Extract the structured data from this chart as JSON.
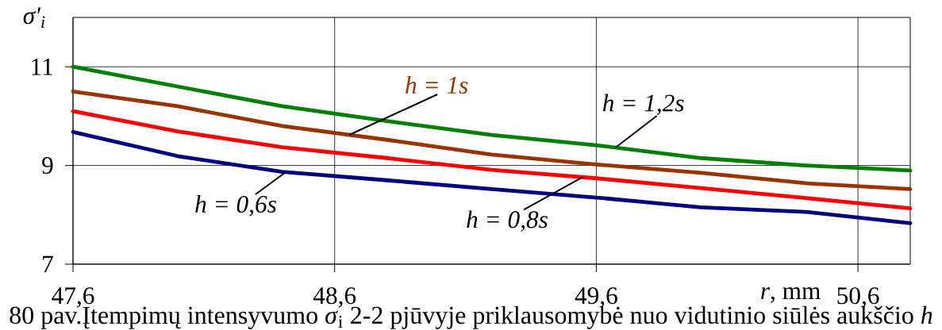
{
  "chart_data": {
    "type": "line",
    "xlabel": "*r*, mm",
    "ylabel": "σ′$_{i}$",
    "annotations": [
      "80 pav.Įtempimų intensyvumo *σ*$_{i}$ 2-2 pjūvyje priklausomybė nuo vidutinio siūlės aukščio *h*"
    ],
    "x": [
      47.6,
      48.0,
      48.4,
      48.8,
      49.2,
      49.6,
      50.0,
      50.4,
      50.8
    ],
    "series": [
      {
        "name": "h = 1,2s",
        "color": "#008000",
        "values": [
          11.0,
          10.6,
          10.2,
          9.9,
          9.62,
          9.41,
          9.15,
          9.0,
          8.9
        ]
      },
      {
        "name": "h = 1s",
        "color": "#993300",
        "values": [
          10.5,
          10.2,
          9.8,
          9.52,
          9.22,
          9.02,
          8.85,
          8.64,
          8.52
        ]
      },
      {
        "name": "h = 0,8s",
        "color": "#ff0000",
        "values": [
          10.1,
          9.69,
          9.37,
          9.15,
          8.91,
          8.74,
          8.54,
          8.34,
          8.13
        ]
      },
      {
        "name": "h = 0,6s",
        "color": "#000080",
        "values": [
          9.68,
          9.19,
          8.87,
          8.7,
          8.52,
          8.35,
          8.15,
          8.06,
          7.83
        ]
      }
    ],
    "xlim": [
      47.6,
      50.8
    ],
    "ylim": [
      7,
      12
    ],
    "xticks": [
      {
        "value": 47.6,
        "label": "47,6"
      },
      {
        "value": 48.6,
        "label": "48,6"
      },
      {
        "value": 49.6,
        "label": "49,6"
      },
      {
        "value": 50.6,
        "label": "50,6"
      }
    ],
    "yticks": [
      7,
      9,
      11
    ],
    "grid": true
  }
}
